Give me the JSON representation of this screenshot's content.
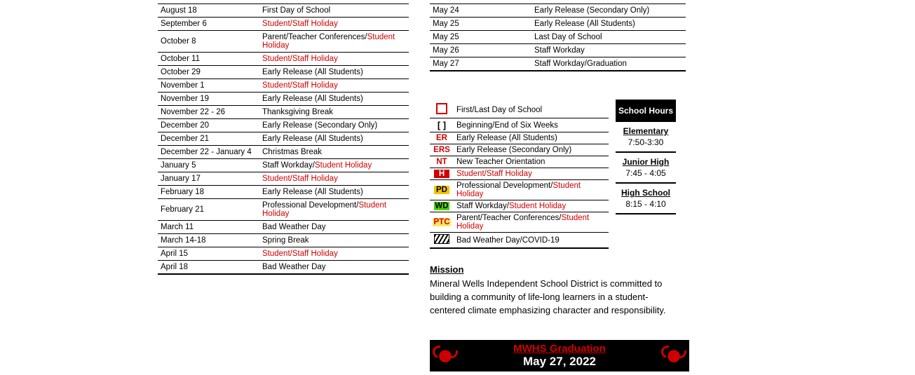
{
  "left_events": [
    {
      "date": "August 18",
      "desc": "First Day of School",
      "red": false
    },
    {
      "date": "September 6",
      "desc": "Student/Staff Holiday",
      "red": true
    },
    {
      "date": "October 8",
      "desc_pre": "Parent/Teacher Conferences/",
      "desc_red": "Student Holiday"
    },
    {
      "date": "October 11",
      "desc": "Student/Staff Holiday",
      "red": true
    },
    {
      "date": "October 29",
      "desc": "Early Release (All Students)",
      "red": false
    },
    {
      "date": "November 1",
      "desc": "Student/Staff Holiday",
      "red": true
    },
    {
      "date": "November 19",
      "desc": "Early Release (All Students)",
      "red": false
    },
    {
      "date": "November 22 - 26",
      "desc": "Thanksgiving Break",
      "red": false
    },
    {
      "date": "December 20",
      "desc": "Early Release (Secondary Only)",
      "red": false
    },
    {
      "date": "December 21",
      "desc": "Early Release (All Students)",
      "red": false
    },
    {
      "date": "December 22 - January 4",
      "desc": "Christmas Break",
      "red": false
    },
    {
      "date": "January 5",
      "desc_pre": "Staff Workday/",
      "desc_red": "Student Holiday"
    },
    {
      "date": "January 17",
      "desc": "Student/Staff Holiday",
      "red": true
    },
    {
      "date": "February 18",
      "desc": "Early Release (All Students)",
      "red": false
    },
    {
      "date": "February 21",
      "desc_pre": "Professional Development/",
      "desc_red": "Student Holiday"
    },
    {
      "date": "March 11",
      "desc": "Bad Weather Day",
      "red": false
    },
    {
      "date": "March 14-18",
      "desc": "Spring Break",
      "red": false
    },
    {
      "date": "April 15",
      "desc": "Student/Staff Holiday",
      "red": true
    },
    {
      "date": "April 18",
      "desc": "Bad Weather Day",
      "red": false
    }
  ],
  "right_events": [
    {
      "date": "May 24",
      "desc": "Early Release (Secondary Only)",
      "red": false
    },
    {
      "date": "May 25",
      "desc": "Early Release (All Students)",
      "red": false
    },
    {
      "date": "May 25",
      "desc": "Last Day of School",
      "red": false
    },
    {
      "date": "May 26",
      "desc": "Staff Workday",
      "red": false
    },
    {
      "date": "May 27",
      "desc": "Staff Workday/Graduation",
      "red": false
    }
  ],
  "legend": [
    {
      "key_type": "box",
      "label": "First/Last Day of School"
    },
    {
      "key_type": "brackets",
      "key": "[ ]",
      "label": "Beginning/End of Six Weeks"
    },
    {
      "key_type": "er",
      "key": "ER",
      "label": "Early Release (All Students)"
    },
    {
      "key_type": "er",
      "key": "ERS",
      "label": "Early Release (Secondary Only)"
    },
    {
      "key_type": "er",
      "key": "NT",
      "label": "New Teacher Orientation"
    },
    {
      "key_type": "h",
      "key": "H",
      "label": "Student/Staff Holiday",
      "label_red": true
    },
    {
      "key_type": "pd",
      "key": "PD",
      "label_pre": "Professional Development/",
      "label_red_part": "Student Holiday"
    },
    {
      "key_type": "wd",
      "key": "WD",
      "label_pre": "Staff Workday/",
      "label_red_part": "Student Holiday"
    },
    {
      "key_type": "ptc",
      "key": "PTC",
      "label_pre": "Parent/Teacher Conferences/",
      "label_red_part": "Student Holiday"
    },
    {
      "key_type": "weather",
      "label": "Bad Weather Day/COVID-19"
    }
  ],
  "hours": {
    "header": "School Hours",
    "sections": [
      {
        "label": "Elementary",
        "time": "7:50-3:30"
      },
      {
        "label": "Junior High",
        "time": "7:45 - 4:05"
      },
      {
        "label": "High School",
        "time": "8:15 - 4:10"
      }
    ]
  },
  "mission": {
    "heading": "Mission",
    "text": "Mineral Wells Independent School District is committed to building a community of life-long learners in a student-centered climate emphasizing character and responsibility."
  },
  "graduation": {
    "title": "MWHS Graduation",
    "date": "May 27, 2022"
  }
}
